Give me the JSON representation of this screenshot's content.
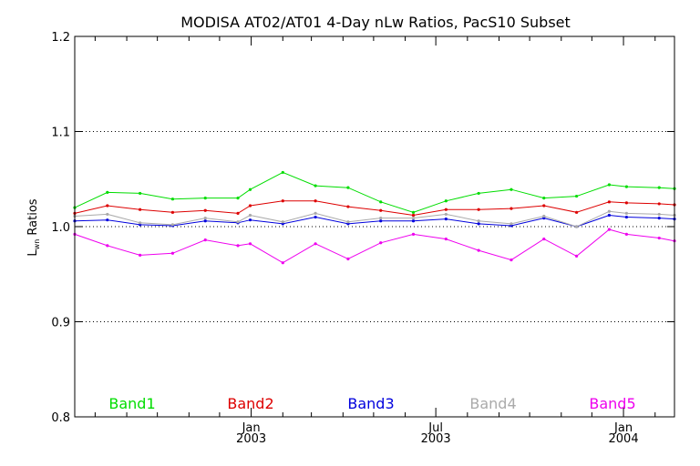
{
  "chart_data": {
    "type": "line",
    "title": "MODISA AT02/AT01 4-Day nLw Ratios, PacS10 Subset",
    "ylabel_main": "L",
    "ylabel_sub": "wn",
    "ylabel_rest": " Ratios",
    "xlabel": "",
    "xlim": [
      "2002-07-12",
      "2004-02-20"
    ],
    "ylim": [
      0.8,
      1.2
    ],
    "y_ticks": [
      {
        "value": 0.8,
        "label": "0.8"
      },
      {
        "value": 0.9,
        "label": "0.9"
      },
      {
        "value": 1.0,
        "label": "1.0"
      },
      {
        "value": 1.1,
        "label": "1.1"
      },
      {
        "value": 1.2,
        "label": "1.2"
      }
    ],
    "x_ticks": [
      {
        "x": "2003-01-01",
        "label": "Jan",
        "label2": "2003"
      },
      {
        "x": "2003-07-01",
        "label": "Jul",
        "label2": "2003"
      },
      {
        "x": "2004-01-01",
        "label": "Jan",
        "label2": "2004"
      }
    ],
    "x_minor_ticks": [
      "2002-08-01",
      "2002-09-01",
      "2002-10-01",
      "2002-11-01",
      "2002-12-01",
      "2003-02-01",
      "2003-03-01",
      "2003-04-01",
      "2003-05-01",
      "2003-06-01",
      "2003-08-01",
      "2003-09-01",
      "2003-10-01",
      "2003-11-01",
      "2003-12-01",
      "2004-02-01"
    ],
    "grid_y": [
      0.9,
      1.0,
      1.1
    ],
    "grid": "dotted horizontal",
    "x": [
      "2002-07-12",
      "2002-08-13",
      "2002-09-14",
      "2002-10-16",
      "2002-11-17",
      "2002-12-19",
      "2002-12-31",
      "2003-02-01",
      "2003-03-05",
      "2003-04-06",
      "2003-05-08",
      "2003-06-09",
      "2003-07-11",
      "2003-08-12",
      "2003-09-13",
      "2003-10-15",
      "2003-11-16",
      "2003-12-18",
      "2004-01-04",
      "2004-02-05",
      "2004-02-20"
    ],
    "series": [
      {
        "name": "Band1",
        "color": "#00dd00",
        "values": [
          1.02,
          1.036,
          1.035,
          1.029,
          1.03,
          1.03,
          1.039,
          1.057,
          1.043,
          1.041,
          1.026,
          1.015,
          1.027,
          1.035,
          1.039,
          1.03,
          1.032,
          1.044,
          1.042,
          1.041,
          1.04
        ]
      },
      {
        "name": "Band2",
        "color": "#dd0000",
        "values": [
          1.014,
          1.022,
          1.018,
          1.015,
          1.017,
          1.014,
          1.022,
          1.027,
          1.027,
          1.021,
          1.017,
          1.012,
          1.018,
          1.018,
          1.019,
          1.022,
          1.015,
          1.026,
          1.025,
          1.024,
          1.023
        ]
      },
      {
        "name": "Band3",
        "color": "#0000dd",
        "values": [
          1.006,
          1.007,
          1.002,
          1.001,
          1.006,
          1.004,
          1.007,
          1.003,
          1.01,
          1.003,
          1.006,
          1.006,
          1.008,
          1.003,
          1.001,
          1.009,
          1.0,
          1.012,
          1.01,
          1.009,
          1.008
        ]
      },
      {
        "name": "Band4",
        "color": "#aaaaaa",
        "values": [
          1.011,
          1.013,
          1.004,
          1.002,
          1.009,
          1.005,
          1.012,
          1.005,
          1.014,
          1.005,
          1.009,
          1.009,
          1.013,
          1.006,
          1.003,
          1.011,
          1.0,
          1.016,
          1.014,
          1.013,
          1.012
        ]
      },
      {
        "name": "Band5",
        "color": "#ee00ee",
        "values": [
          0.992,
          0.98,
          0.97,
          0.972,
          0.986,
          0.98,
          0.982,
          0.962,
          0.982,
          0.966,
          0.983,
          0.992,
          0.987,
          0.975,
          0.965,
          0.987,
          0.969,
          0.997,
          0.992,
          0.988,
          0.985
        ]
      }
    ]
  }
}
